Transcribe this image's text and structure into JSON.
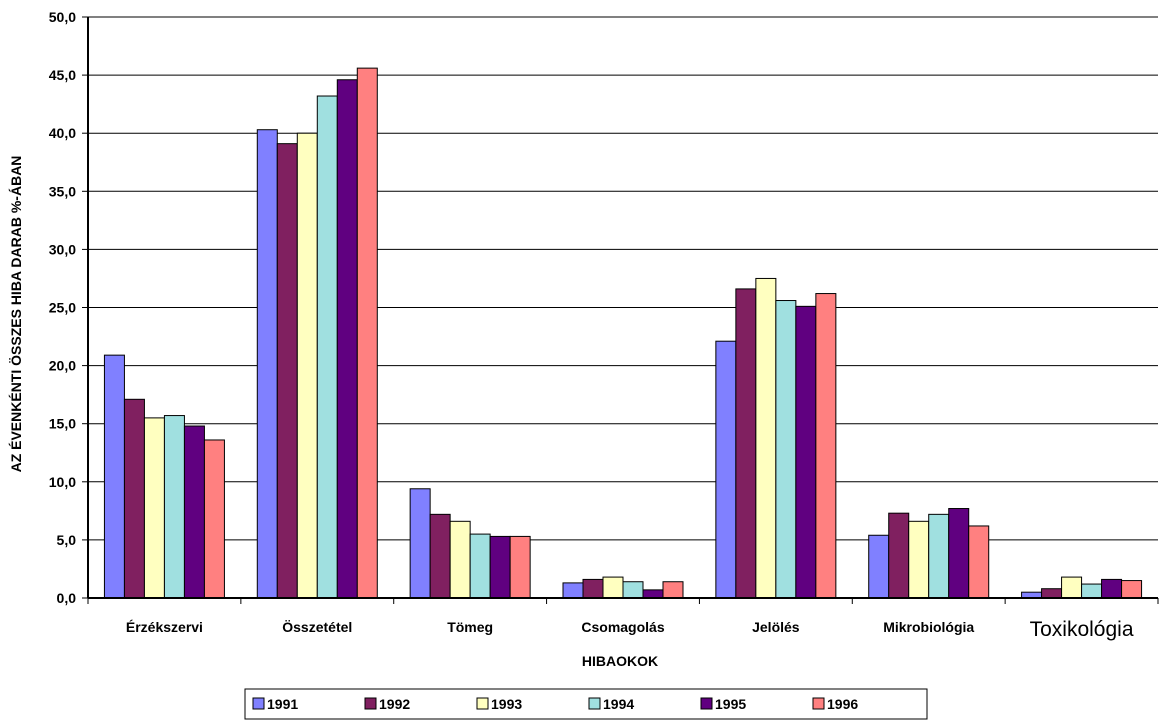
{
  "chart_data": {
    "type": "bar",
    "title": "",
    "xlabel": "HIBAOKOK",
    "ylabel": "AZ ÉVENKÉNTI ÖSSZES HIBA DARAB %-ÁBAN",
    "ylim": [
      0,
      50
    ],
    "yticks": [
      "0,0",
      "5,0",
      "10,0",
      "15,0",
      "20,0",
      "25,0",
      "30,0",
      "35,0",
      "40,0",
      "45,0",
      "50,0"
    ],
    "grid": true,
    "legend_position": "bottom",
    "categories": [
      "Érzékszervi",
      "Összetétel",
      "Tömeg",
      "Csomagolás",
      "Jelölés",
      "Mikrobiológia",
      "Toxikológia"
    ],
    "series": [
      {
        "name": "1991",
        "color": "#8080ff",
        "values": [
          20.9,
          40.3,
          9.4,
          1.3,
          22.1,
          5.4,
          0.5
        ]
      },
      {
        "name": "1992",
        "color": "#802060",
        "values": [
          17.1,
          39.1,
          7.2,
          1.6,
          26.6,
          7.3,
          0.8
        ]
      },
      {
        "name": "1993",
        "color": "#ffffc0",
        "values": [
          15.5,
          40.0,
          6.6,
          1.8,
          27.5,
          6.6,
          1.8
        ]
      },
      {
        "name": "1994",
        "color": "#a0e0e0",
        "values": [
          15.7,
          43.2,
          5.5,
          1.4,
          25.6,
          7.2,
          1.2
        ]
      },
      {
        "name": "1995",
        "color": "#600080",
        "values": [
          14.8,
          44.6,
          5.3,
          0.7,
          25.1,
          7.7,
          1.6
        ]
      },
      {
        "name": "1996",
        "color": "#ff8080",
        "values": [
          13.6,
          45.6,
          5.3,
          1.4,
          26.2,
          6.2,
          1.5
        ]
      }
    ]
  }
}
